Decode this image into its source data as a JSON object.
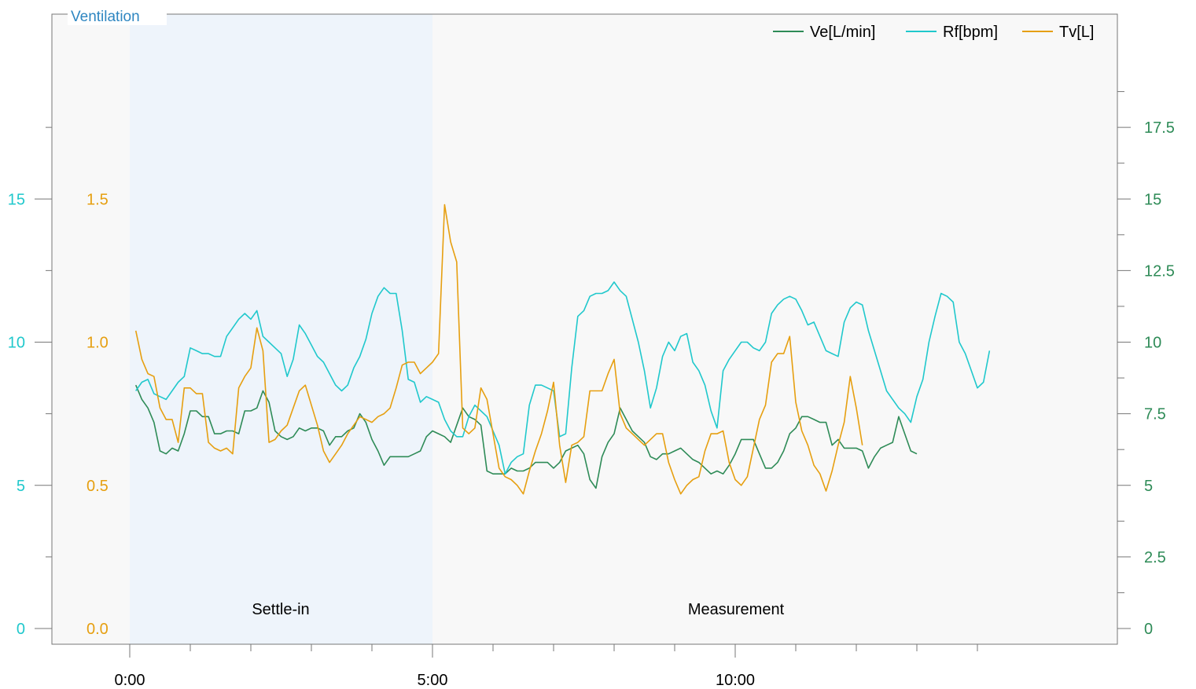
{
  "panel_title": "Ventilation",
  "colors": {
    "ve": "#2e8b57",
    "rf": "#20c8cc",
    "tv": "#e69f10",
    "title": "#2e86c1",
    "settle_shade": "#eef4fb",
    "plot_bg": "#f8f8f8",
    "axis": "#777777"
  },
  "chart_data": {
    "type": "line",
    "x_unit": "time (m:ss)",
    "xlim": [
      "-1:15",
      "14:45"
    ],
    "x_ticks": [
      "0:00",
      "5:00",
      "10:00"
    ],
    "left_axes": [
      {
        "series": "Rf[bpm]",
        "range": [
          0,
          20
        ],
        "ticks": [
          "0",
          "5",
          "10",
          "15"
        ]
      },
      {
        "series": "Tv[L]",
        "range": [
          0.0,
          2.0
        ],
        "ticks": [
          "0.0",
          "0.5",
          "1.0",
          "1.5"
        ]
      }
    ],
    "right_axis": {
      "series": "Ve[L/min]",
      "range": [
        0,
        20
      ],
      "ticks": [
        "0",
        "2.5",
        "5",
        "7.5",
        "10",
        "12.5",
        "15",
        "17.5"
      ]
    },
    "regions": [
      {
        "label": "Settle-in",
        "start": "0:00",
        "end": "5:00",
        "shaded": true
      },
      {
        "label": "Measurement",
        "start": "5:00",
        "end": "15:00",
        "shaded": false
      }
    ],
    "legend": {
      "placement": "top-right",
      "entries": [
        "Ve[L/min]",
        "Rf[bpm]",
        "Tv[L]"
      ]
    },
    "t_start_s": 6,
    "t_step_s": 6,
    "series": [
      {
        "name": "Ve[L/min]",
        "key": "ve",
        "axis": "right",
        "values": [
          8.5,
          8.0,
          7.7,
          7.2,
          6.2,
          6.1,
          6.3,
          6.2,
          6.8,
          7.6,
          7.6,
          7.4,
          7.4,
          6.8,
          6.8,
          6.9,
          6.9,
          6.8,
          7.6,
          7.6,
          7.7,
          8.3,
          7.9,
          6.9,
          6.7,
          6.6,
          6.7,
          7.0,
          6.9,
          7.0,
          7.0,
          6.9,
          6.4,
          6.7,
          6.7,
          6.9,
          7.0,
          7.5,
          7.2,
          6.6,
          6.2,
          5.7,
          6.0,
          6.0,
          6.0,
          6.0,
          6.1,
          6.2,
          6.7,
          6.9,
          6.8,
          6.7,
          6.5,
          7.1,
          7.7,
          7.4,
          7.3,
          7.1,
          5.5,
          5.4,
          5.4,
          5.4,
          5.6,
          5.5,
          5.5,
          5.6,
          5.8,
          5.8,
          5.8,
          5.6,
          5.8,
          6.2,
          6.3,
          6.4,
          6.1,
          5.2,
          4.9,
          6.0,
          6.5,
          6.8,
          7.7,
          7.3,
          6.9,
          6.7,
          6.5,
          6.0,
          5.9,
          6.1,
          6.1,
          6.2,
          6.3,
          6.1,
          5.9,
          5.8,
          5.6,
          5.4,
          5.5,
          5.4,
          5.7,
          6.1,
          6.6,
          6.6,
          6.6,
          6.1,
          5.6,
          5.6,
          5.8,
          6.2,
          6.8,
          7.0,
          7.4,
          7.4,
          7.3,
          7.2,
          7.2,
          6.4,
          6.6,
          6.3,
          6.3,
          6.3,
          6.2,
          5.6,
          6.0,
          6.3,
          6.4,
          6.5,
          7.4,
          6.8,
          6.2,
          6.1
        ]
      },
      {
        "name": "Rf[bpm]",
        "key": "rf",
        "axis": "left",
        "values": [
          8.3,
          8.6,
          8.7,
          8.2,
          8.1,
          8.0,
          8.3,
          8.6,
          8.8,
          9.8,
          9.7,
          9.6,
          9.6,
          9.5,
          9.5,
          10.2,
          10.5,
          10.8,
          11.0,
          10.8,
          11.1,
          10.2,
          10.0,
          9.8,
          9.6,
          8.8,
          9.4,
          10.6,
          10.3,
          9.9,
          9.5,
          9.3,
          8.9,
          8.5,
          8.3,
          8.5,
          9.1,
          9.5,
          10.1,
          11.0,
          11.6,
          11.9,
          11.7,
          11.7,
          10.4,
          8.7,
          8.6,
          7.9,
          8.1,
          8.0,
          7.9,
          7.3,
          6.9,
          6.7,
          6.7,
          7.4,
          7.8,
          7.6,
          7.4,
          6.9,
          6.4,
          5.4,
          5.8,
          6.0,
          6.1,
          7.8,
          8.5,
          8.5,
          8.4,
          8.3,
          6.7,
          6.8,
          9.1,
          10.9,
          11.1,
          11.6,
          11.7,
          11.7,
          11.8,
          12.1,
          11.8,
          11.6,
          10.8,
          10.0,
          9.0,
          7.7,
          8.4,
          9.5,
          10.0,
          9.7,
          10.2,
          10.3,
          9.3,
          9.0,
          8.5,
          7.6,
          7.0,
          9.0,
          9.4,
          9.7,
          10.0,
          10.0,
          9.8,
          9.7,
          10.0,
          11.0,
          11.3,
          11.5,
          11.6,
          11.5,
          11.1,
          10.6,
          10.7,
          10.2,
          9.7,
          9.6,
          9.5,
          10.7,
          11.2,
          11.4,
          11.3,
          10.4,
          9.7,
          9.0,
          8.3,
          8.0,
          7.7,
          7.5,
          7.2,
          8.1,
          8.7,
          10.0,
          10.9,
          11.7,
          11.6,
          11.4,
          10.0,
          9.6,
          9.0,
          8.4,
          8.6,
          9.7
        ]
      },
      {
        "name": "Tv[L]",
        "key": "tv",
        "axis": "left2",
        "values": [
          1.04,
          0.94,
          0.89,
          0.88,
          0.77,
          0.73,
          0.73,
          0.65,
          0.84,
          0.84,
          0.82,
          0.82,
          0.65,
          0.63,
          0.62,
          0.63,
          0.61,
          0.84,
          0.88,
          0.91,
          1.05,
          0.97,
          0.65,
          0.66,
          0.69,
          0.71,
          0.77,
          0.83,
          0.85,
          0.78,
          0.71,
          0.62,
          0.58,
          0.61,
          0.64,
          0.68,
          0.71,
          0.74,
          0.73,
          0.72,
          0.74,
          0.75,
          0.77,
          0.84,
          0.92,
          0.93,
          0.93,
          0.89,
          0.91,
          0.93,
          0.96,
          1.48,
          1.35,
          1.28,
          0.7,
          0.68,
          0.7,
          0.84,
          0.8,
          0.68,
          0.56,
          0.53,
          0.52,
          0.5,
          0.47,
          0.55,
          0.62,
          0.68,
          0.76,
          0.86,
          0.64,
          0.51,
          0.64,
          0.65,
          0.67,
          0.83,
          0.83,
          0.83,
          0.89,
          0.94,
          0.75,
          0.7,
          0.68,
          0.66,
          0.64,
          0.66,
          0.68,
          0.68,
          0.58,
          0.52,
          0.47,
          0.5,
          0.52,
          0.53,
          0.62,
          0.68,
          0.68,
          0.69,
          0.58,
          0.52,
          0.5,
          0.53,
          0.63,
          0.73,
          0.78,
          0.93,
          0.96,
          0.96,
          1.02,
          0.79,
          0.69,
          0.64,
          0.57,
          0.54,
          0.48,
          0.55,
          0.64,
          0.72,
          0.88,
          0.77,
          0.64
        ]
      }
    ]
  }
}
